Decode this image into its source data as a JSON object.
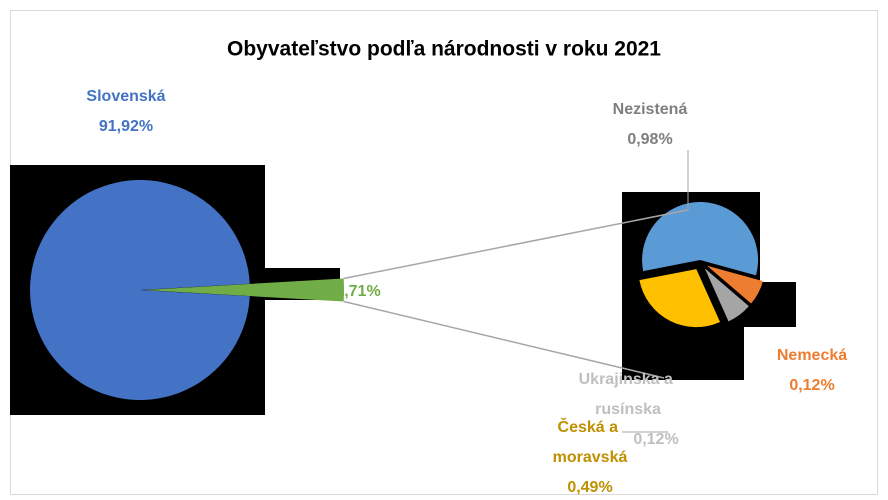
{
  "chart_data": {
    "type": "pie-of-pie",
    "title": "Obyvateľstvo podľa národnosti v roku 2021",
    "categories": [
      "Slovenská",
      "Nezistená",
      "Nemecká",
      "Ukrajinska a rusínska",
      "Česká a moravská"
    ],
    "values": [
      91.92,
      0.98,
      0.12,
      0.12,
      0.49
    ],
    "value_labels": [
      "91,92%",
      "0,98%",
      "0,12%",
      "0,12%",
      "0,49%"
    ],
    "colors": [
      "#4472c4",
      "#5b9bd5",
      "#ed7d31",
      "#a5a5a5",
      "#ffc000"
    ],
    "other": {
      "value": 1.71,
      "value_label": "1,71%",
      "color": "#70ad47"
    }
  }
}
